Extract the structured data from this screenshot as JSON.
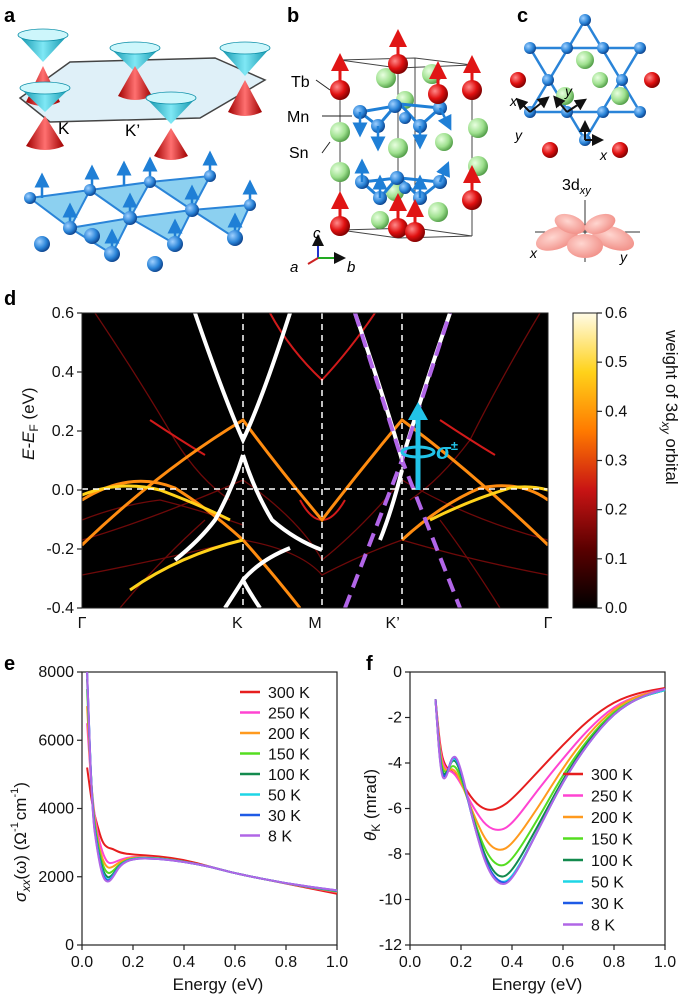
{
  "panels": {
    "a": {
      "label": "a",
      "points": [
        "K",
        "K’"
      ]
    },
    "b": {
      "label": "b",
      "atoms": [
        "Tb",
        "Mn",
        "Sn"
      ],
      "axes": [
        "c",
        "a",
        "b"
      ]
    },
    "c": {
      "label": "c",
      "orbital": "3d",
      "orbital_sub": "xy",
      "axes": [
        "x",
        "y"
      ]
    },
    "d": {
      "label": "d",
      "ylabel": "E-E",
      "ylabel_sub": "F",
      "ylabel_unit": " (eV)",
      "kpoints": [
        "Γ",
        "K",
        "M",
        "K’",
        "Γ"
      ],
      "colorbar_label": "weight of 3d",
      "colorbar_label_sub": "xy",
      "colorbar_label_end": " orbital",
      "sigma": "σ",
      "sigma_sup": "±",
      "colors": {
        "background": "#000000",
        "high": "#ffffff",
        "mid": "#ff8a00",
        "low": "#cc1010",
        "dashed": "#b266e8",
        "arrow": "#22c3e8"
      }
    },
    "e": {
      "label": "e"
    },
    "f": {
      "label": "f"
    }
  },
  "chart_data": [
    {
      "type": "heatmap",
      "panel": "d",
      "ylim": [
        -0.4,
        0.6
      ],
      "yticks": [
        -0.4,
        -0.2,
        0.0,
        0.2,
        0.4,
        0.6
      ],
      "ytick_labels": [
        "-0.4",
        "-0.2",
        "0.0",
        "0.2",
        "0.4",
        "0.6"
      ],
      "colorbar": {
        "range": [
          0.0,
          0.6
        ],
        "ticks": [
          "0.0",
          "0.1",
          "0.2",
          "0.3",
          "0.4",
          "0.5",
          "0.6"
        ]
      },
      "kpoint_positions": [
        0,
        1,
        1.5,
        2,
        3
      ],
      "dirac_points_eV": [
        0.18,
        0.08
      ]
    },
    {
      "type": "line",
      "panel": "e",
      "xlabel": "Energy (eV)",
      "ylabel_main": "σ",
      "ylabel_sub": "xx",
      "ylabel_rest": "(ω) (Ω",
      "ylabel_sup1": "-1",
      "ylabel_cm": "cm",
      "ylabel_sup2": "-1",
      "ylabel_end": ")",
      "xlim": [
        0,
        1
      ],
      "ylim": [
        0,
        8000
      ],
      "xticks": [
        "0.0",
        "0.2",
        "0.4",
        "0.6",
        "0.8",
        "1.0"
      ],
      "yticks": [
        "0",
        "2000",
        "4000",
        "6000",
        "8000"
      ],
      "series": [
        {
          "name": "300 K",
          "color": "#e61e1e",
          "x": [
            0.02,
            0.04,
            0.06,
            0.08,
            0.1,
            0.12,
            0.15,
            0.2,
            0.3,
            0.4,
            0.5,
            0.6,
            0.8,
            1.0
          ],
          "y": [
            5200,
            4100,
            3500,
            3000,
            2850,
            2820,
            2700,
            2650,
            2600,
            2500,
            2300,
            2100,
            1800,
            1500
          ]
        },
        {
          "name": "250 K",
          "color": "#ff44d2",
          "x": [
            0.02,
            0.04,
            0.06,
            0.08,
            0.1,
            0.12,
            0.15,
            0.2,
            0.3,
            0.4,
            0.5,
            0.6,
            0.8,
            1.0
          ],
          "y": [
            6500,
            4300,
            3300,
            2700,
            2400,
            2400,
            2500,
            2600,
            2550,
            2450,
            2300,
            2100,
            1800,
            1550
          ]
        },
        {
          "name": "200 K",
          "color": "#ff9a1e",
          "x": [
            0.02,
            0.04,
            0.06,
            0.08,
            0.1,
            0.12,
            0.15,
            0.2,
            0.3,
            0.4,
            0.5,
            0.6,
            0.8,
            1.0
          ],
          "y": [
            7000,
            4200,
            3100,
            2500,
            2250,
            2280,
            2450,
            2580,
            2550,
            2450,
            2300,
            2100,
            1800,
            1560
          ]
        },
        {
          "name": "150 K",
          "color": "#55dd20",
          "x": [
            0.02,
            0.04,
            0.06,
            0.08,
            0.1,
            0.12,
            0.15,
            0.2,
            0.3,
            0.4,
            0.5,
            0.6,
            0.8,
            1.0
          ],
          "y": [
            7500,
            4100,
            3000,
            2350,
            2080,
            2150,
            2400,
            2560,
            2550,
            2450,
            2300,
            2100,
            1800,
            1570
          ]
        },
        {
          "name": "100 K",
          "color": "#138a4e",
          "x": [
            0.02,
            0.04,
            0.06,
            0.08,
            0.1,
            0.12,
            0.15,
            0.2,
            0.3,
            0.4,
            0.5,
            0.6,
            0.8,
            1.0
          ],
          "y": [
            7800,
            4000,
            2900,
            2200,
            1950,
            2050,
            2380,
            2550,
            2540,
            2440,
            2300,
            2100,
            1800,
            1580
          ]
        },
        {
          "name": "50 K",
          "color": "#1ed6e6",
          "x": [
            0.02,
            0.04,
            0.06,
            0.08,
            0.1,
            0.12,
            0.15,
            0.2,
            0.3,
            0.4,
            0.5,
            0.6,
            0.8,
            1.0
          ],
          "y": [
            8000,
            3950,
            2850,
            2100,
            1880,
            2000,
            2370,
            2550,
            2540,
            2440,
            2300,
            2100,
            1800,
            1590
          ]
        },
        {
          "name": "30 K",
          "color": "#1e5ae6",
          "x": [
            0.02,
            0.04,
            0.06,
            0.08,
            0.1,
            0.12,
            0.15,
            0.2,
            0.3,
            0.4,
            0.5,
            0.6,
            0.8,
            1.0
          ],
          "y": [
            8000,
            3900,
            2800,
            2050,
            1850,
            1980,
            2360,
            2540,
            2530,
            2440,
            2300,
            2100,
            1800,
            1600
          ]
        },
        {
          "name": "8 K",
          "color": "#b066e6",
          "x": [
            0.02,
            0.04,
            0.06,
            0.08,
            0.1,
            0.12,
            0.15,
            0.2,
            0.3,
            0.4,
            0.5,
            0.6,
            0.8,
            1.0
          ],
          "y": [
            8000,
            3850,
            2750,
            2000,
            1820,
            1960,
            2350,
            2540,
            2530,
            2440,
            2300,
            2100,
            1800,
            1600
          ]
        }
      ]
    },
    {
      "type": "line",
      "panel": "f",
      "xlabel": "Energy (eV)",
      "ylabel_main": "θ",
      "ylabel_sub": "K",
      "ylabel_rest": " (mrad)",
      "xlim": [
        0,
        1
      ],
      "ylim": [
        -12,
        0
      ],
      "xticks": [
        "0.0",
        "0.2",
        "0.4",
        "0.6",
        "0.8",
        "1.0"
      ],
      "yticks": [
        "0",
        "-2",
        "-4",
        "-6",
        "-8",
        "-10",
        "-12"
      ],
      "series": [
        {
          "name": "300 K",
          "color": "#e61e1e",
          "x": [
            0.1,
            0.12,
            0.14,
            0.17,
            0.2,
            0.25,
            0.3,
            0.35,
            0.4,
            0.5,
            0.6,
            0.7,
            0.8,
            0.9,
            1.0
          ],
          "y": [
            -1.2,
            -3.5,
            -4.2,
            -4.4,
            -4.8,
            -5.7,
            -6.1,
            -6.0,
            -5.6,
            -4.4,
            -3.2,
            -2.1,
            -1.3,
            -0.9,
            -0.7
          ]
        },
        {
          "name": "250 K",
          "color": "#ff44d2",
          "x": [
            0.1,
            0.12,
            0.14,
            0.17,
            0.2,
            0.25,
            0.3,
            0.35,
            0.4,
            0.5,
            0.6,
            0.7,
            0.8,
            0.9,
            1.0
          ],
          "y": [
            -1.2,
            -3.7,
            -4.3,
            -4.4,
            -4.9,
            -6.0,
            -6.8,
            -7.0,
            -6.7,
            -5.2,
            -3.8,
            -2.5,
            -1.5,
            -1.0,
            -0.75
          ]
        },
        {
          "name": "200 K",
          "color": "#ff9a1e",
          "x": [
            0.1,
            0.12,
            0.14,
            0.17,
            0.2,
            0.25,
            0.3,
            0.35,
            0.4,
            0.5,
            0.6,
            0.7,
            0.8,
            0.9,
            1.0
          ],
          "y": [
            -1.2,
            -3.9,
            -4.4,
            -4.2,
            -4.8,
            -6.3,
            -7.5,
            -7.9,
            -7.6,
            -6.0,
            -4.2,
            -2.7,
            -1.6,
            -1.0,
            -0.8
          ]
        },
        {
          "name": "150 K",
          "color": "#55dd20",
          "x": [
            0.1,
            0.12,
            0.14,
            0.17,
            0.2,
            0.25,
            0.3,
            0.35,
            0.4,
            0.5,
            0.6,
            0.7,
            0.8,
            0.9,
            1.0
          ],
          "y": [
            -1.2,
            -4.1,
            -4.5,
            -4.0,
            -4.6,
            -6.5,
            -8.0,
            -8.6,
            -8.3,
            -6.5,
            -4.5,
            -2.9,
            -1.7,
            -1.1,
            -0.8
          ]
        },
        {
          "name": "100 K",
          "color": "#138a4e",
          "x": [
            0.1,
            0.12,
            0.14,
            0.17,
            0.2,
            0.25,
            0.3,
            0.35,
            0.4,
            0.5,
            0.6,
            0.7,
            0.8,
            0.9,
            1.0
          ],
          "y": [
            -1.2,
            -4.3,
            -4.6,
            -3.7,
            -4.4,
            -6.6,
            -8.3,
            -9.1,
            -8.8,
            -6.8,
            -4.7,
            -3.0,
            -1.8,
            -1.1,
            -0.8
          ]
        },
        {
          "name": "50 K",
          "color": "#1ed6e6",
          "x": [
            0.1,
            0.12,
            0.14,
            0.17,
            0.2,
            0.25,
            0.3,
            0.35,
            0.4,
            0.5,
            0.6,
            0.7,
            0.8,
            0.9,
            1.0
          ],
          "y": [
            -1.2,
            -4.4,
            -4.7,
            -3.6,
            -4.3,
            -6.7,
            -8.5,
            -9.3,
            -9.1,
            -7.0,
            -4.8,
            -3.1,
            -1.8,
            -1.1,
            -0.8
          ]
        },
        {
          "name": "30 K",
          "color": "#1e5ae6",
          "x": [
            0.1,
            0.12,
            0.14,
            0.17,
            0.2,
            0.25,
            0.3,
            0.35,
            0.4,
            0.5,
            0.6,
            0.7,
            0.8,
            0.9,
            1.0
          ],
          "y": [
            -1.2,
            -4.4,
            -4.7,
            -3.5,
            -4.3,
            -6.7,
            -8.5,
            -9.3,
            -9.2,
            -7.0,
            -4.8,
            -3.1,
            -1.8,
            -1.1,
            -0.75
          ]
        },
        {
          "name": "8 K",
          "color": "#b066e6",
          "x": [
            0.1,
            0.12,
            0.14,
            0.17,
            0.2,
            0.25,
            0.3,
            0.35,
            0.4,
            0.5,
            0.6,
            0.7,
            0.8,
            0.9,
            1.0
          ],
          "y": [
            -1.2,
            -4.5,
            -4.8,
            -3.5,
            -4.2,
            -6.7,
            -8.6,
            -9.4,
            -9.2,
            -7.0,
            -4.8,
            -3.1,
            -1.8,
            -1.1,
            -0.75
          ]
        }
      ]
    }
  ]
}
